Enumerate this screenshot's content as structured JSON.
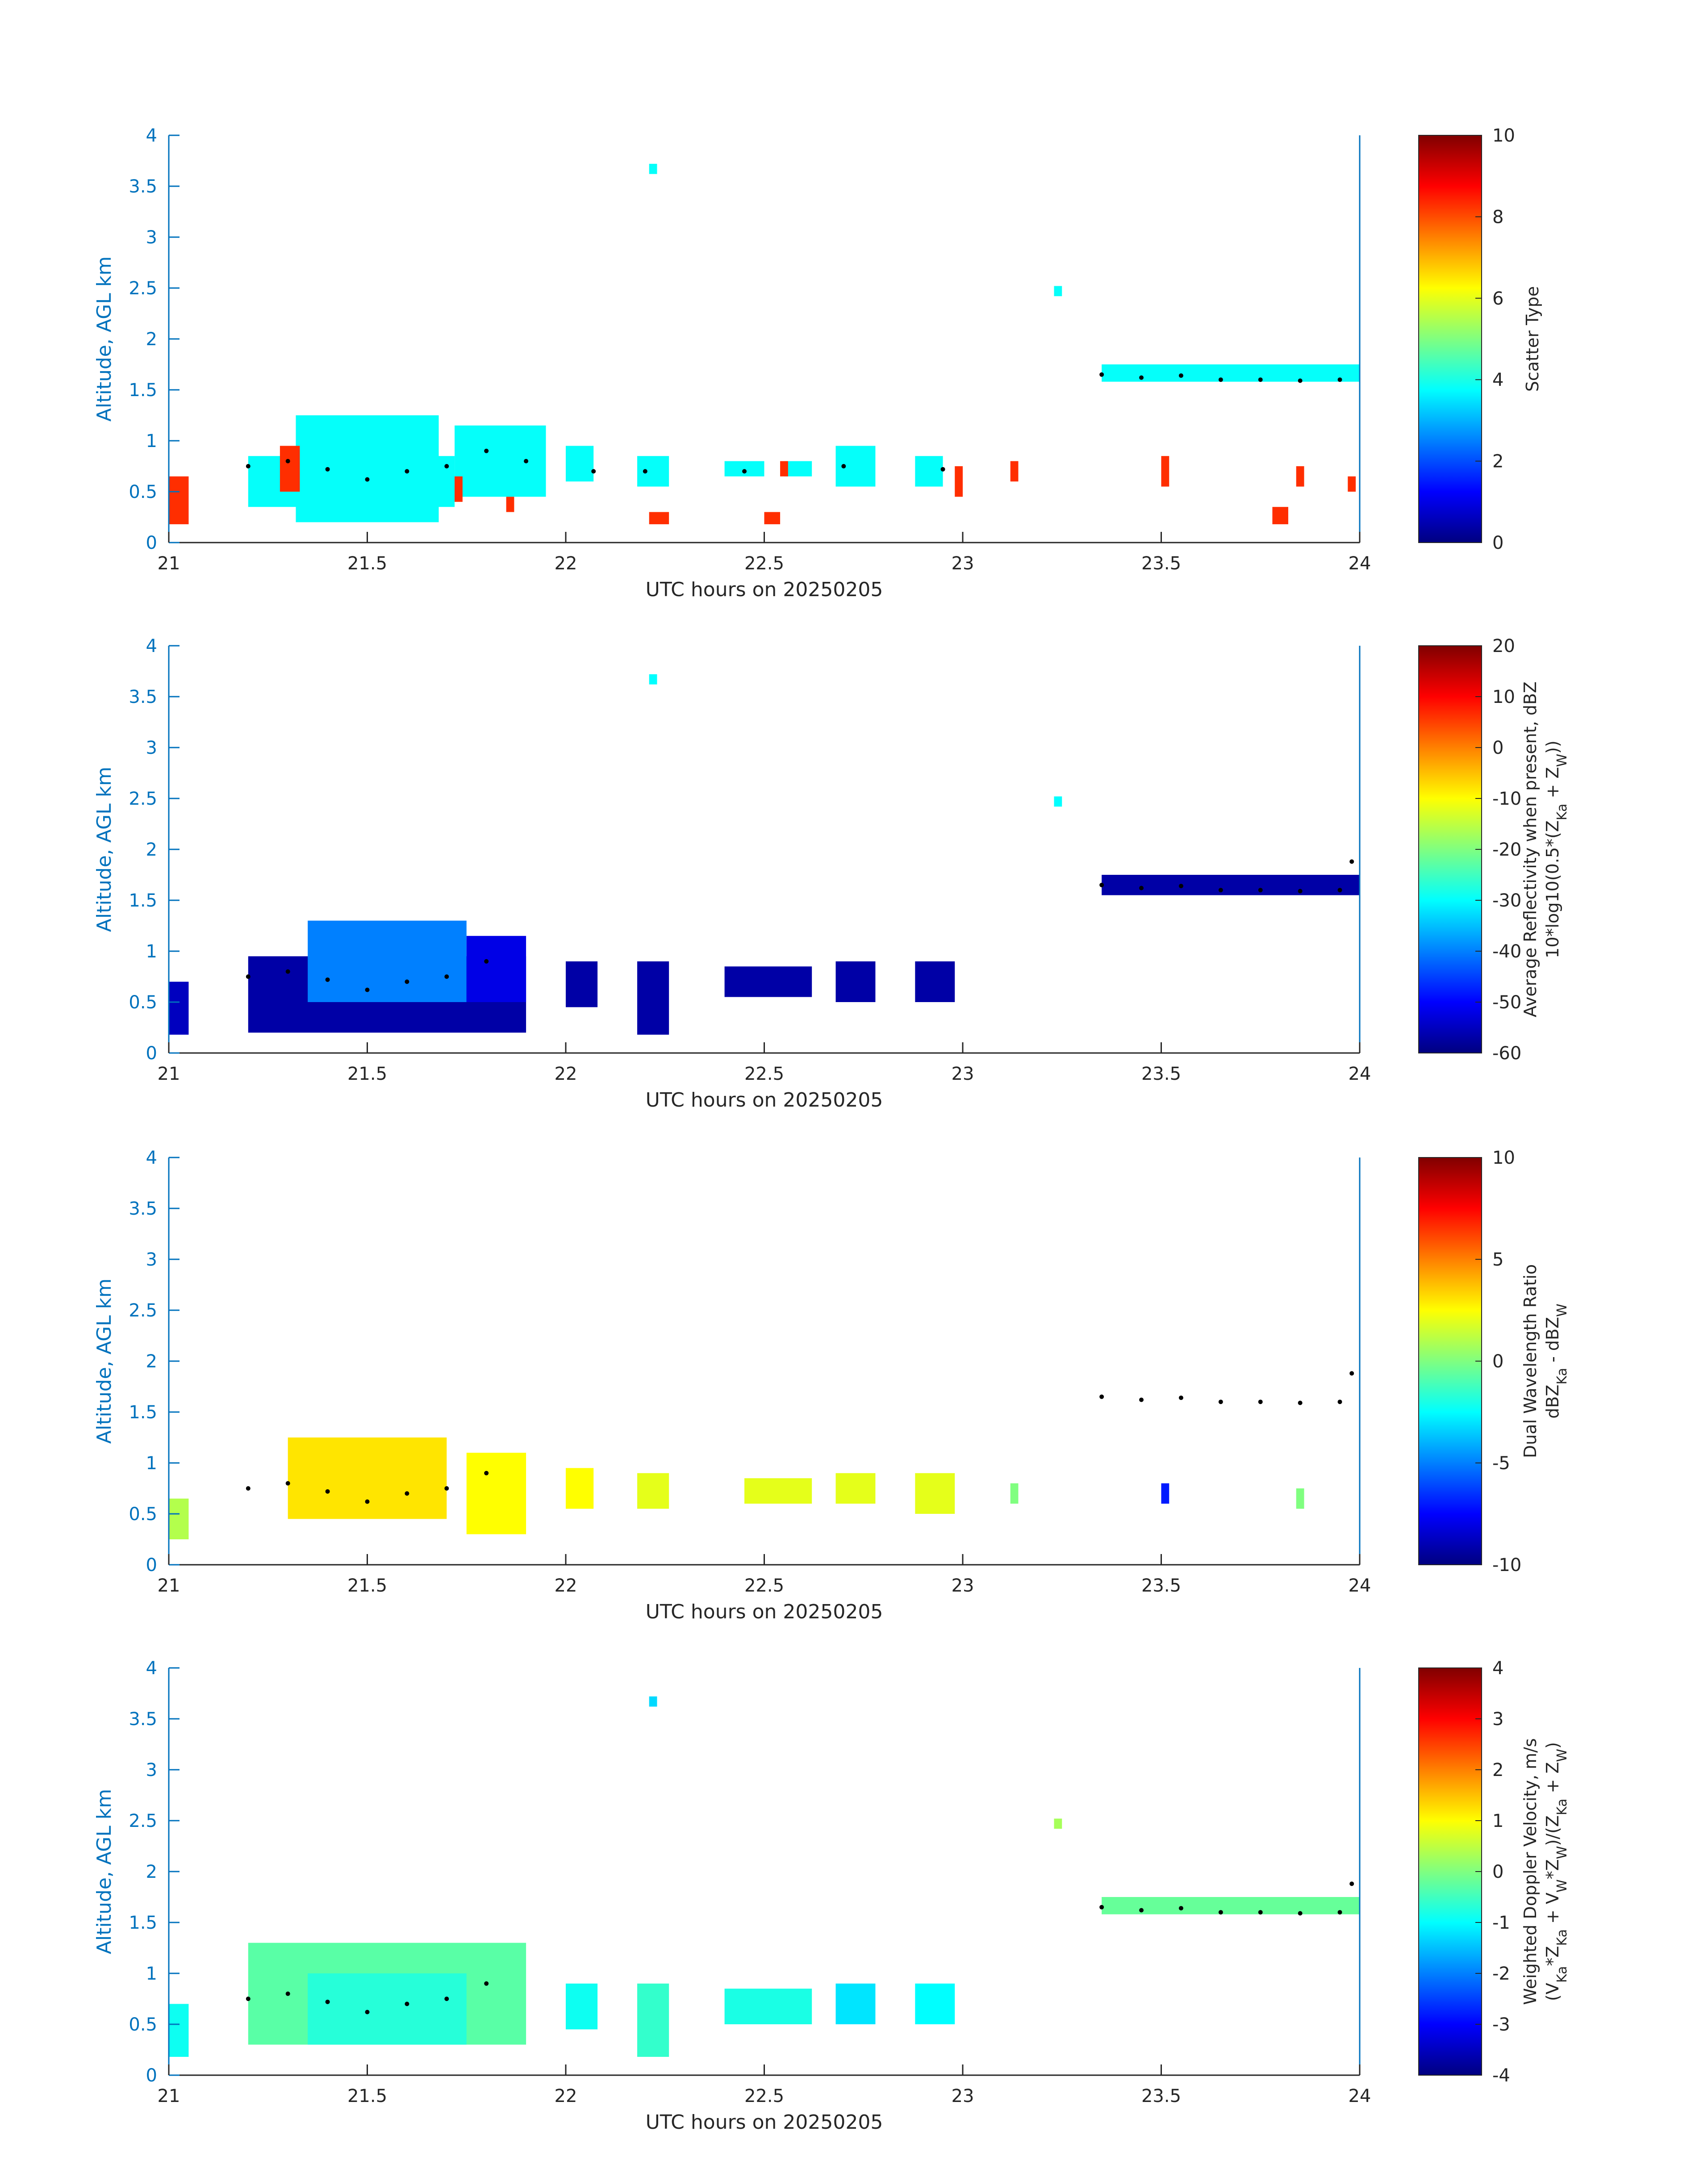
{
  "chart_data": [
    {
      "type": "heatmap",
      "xlabel": "UTC hours on 20250205",
      "ylabel": "Altitude, AGL km",
      "xlim": [
        21,
        24
      ],
      "ylim": [
        0,
        4
      ],
      "xticks": [
        "21",
        "21.5",
        "22",
        "22.5",
        "23",
        "23.5",
        "24"
      ],
      "yticks": [
        "0",
        "0.5",
        "1",
        "1.5",
        "2",
        "2.5",
        "3",
        "3.5",
        "4"
      ],
      "colorbar": {
        "label_lines": [
          "Scatter Type"
        ],
        "lim": [
          0,
          10
        ],
        "ticks": [
          "0",
          "2",
          "4",
          "6",
          "8",
          "10"
        ]
      },
      "colormap": "jet",
      "regions": [
        {
          "x": [
            21.0,
            21.05
          ],
          "y": [
            0.18,
            0.65
          ],
          "value": 8.3
        },
        {
          "x": [
            21.2,
            21.72
          ],
          "y": [
            0.35,
            0.85
          ],
          "value": 3.8
        },
        {
          "x": [
            21.32,
            21.68
          ],
          "y": [
            0.2,
            1.25
          ],
          "value": 3.8
        },
        {
          "x": [
            21.72,
            21.95
          ],
          "y": [
            0.45,
            1.15
          ],
          "value": 3.8
        },
        {
          "x": [
            22.0,
            22.07
          ],
          "y": [
            0.6,
            0.95
          ],
          "value": 3.8
        },
        {
          "x": [
            22.18,
            22.26
          ],
          "y": [
            0.55,
            0.85
          ],
          "value": 3.8
        },
        {
          "x": [
            22.4,
            22.5
          ],
          "y": [
            0.65,
            0.8
          ],
          "value": 3.8
        },
        {
          "x": [
            22.55,
            22.62
          ],
          "y": [
            0.65,
            0.8
          ],
          "value": 3.8
        },
        {
          "x": [
            22.68,
            22.78
          ],
          "y": [
            0.55,
            0.95
          ],
          "value": 3.8
        },
        {
          "x": [
            22.88,
            22.95
          ],
          "y": [
            0.55,
            0.85
          ],
          "value": 3.8
        },
        {
          "x": [
            23.35,
            24.0
          ],
          "y": [
            1.58,
            1.75
          ],
          "value": 3.8
        },
        {
          "x": [
            22.21,
            22.23
          ],
          "y": [
            3.62,
            3.72
          ],
          "value": 3.8
        },
        {
          "x": [
            23.23,
            23.25
          ],
          "y": [
            2.42,
            2.52
          ],
          "value": 3.8
        },
        {
          "x": [
            21.28,
            21.33
          ],
          "y": [
            0.5,
            0.95
          ],
          "value": 8.3
        },
        {
          "x": [
            21.72,
            21.74
          ],
          "y": [
            0.4,
            0.65
          ],
          "value": 8.3
        },
        {
          "x": [
            21.85,
            21.87
          ],
          "y": [
            0.3,
            0.45
          ],
          "value": 8.3
        },
        {
          "x": [
            22.21,
            22.26
          ],
          "y": [
            0.18,
            0.3
          ],
          "value": 8.3
        },
        {
          "x": [
            22.5,
            22.54
          ],
          "y": [
            0.18,
            0.3
          ],
          "value": 8.3
        },
        {
          "x": [
            22.54,
            22.56
          ],
          "y": [
            0.65,
            0.8
          ],
          "value": 8.3
        },
        {
          "x": [
            22.98,
            23.0
          ],
          "y": [
            0.45,
            0.75
          ],
          "value": 8.3
        },
        {
          "x": [
            23.12,
            23.14
          ],
          "y": [
            0.6,
            0.8
          ],
          "value": 8.3
        },
        {
          "x": [
            23.5,
            23.52
          ],
          "y": [
            0.55,
            0.85
          ],
          "value": 8.3
        },
        {
          "x": [
            23.78,
            23.82
          ],
          "y": [
            0.18,
            0.35
          ],
          "value": 8.3
        },
        {
          "x": [
            23.84,
            23.86
          ],
          "y": [
            0.55,
            0.75
          ],
          "value": 8.3
        },
        {
          "x": [
            23.97,
            23.99
          ],
          "y": [
            0.5,
            0.65
          ],
          "value": 8.3
        }
      ],
      "dots": [
        [
          21.2,
          0.75
        ],
        [
          21.3,
          0.8
        ],
        [
          21.4,
          0.72
        ],
        [
          21.5,
          0.62
        ],
        [
          21.6,
          0.7
        ],
        [
          21.7,
          0.75
        ],
        [
          21.8,
          0.9
        ],
        [
          21.9,
          0.8
        ],
        [
          22.07,
          0.7
        ],
        [
          22.2,
          0.7
        ],
        [
          22.45,
          0.7
        ],
        [
          22.7,
          0.75
        ],
        [
          22.95,
          0.72
        ],
        [
          23.35,
          1.65
        ],
        [
          23.45,
          1.62
        ],
        [
          23.55,
          1.64
        ],
        [
          23.65,
          1.6
        ],
        [
          23.75,
          1.6
        ],
        [
          23.85,
          1.59
        ],
        [
          23.95,
          1.6
        ]
      ]
    },
    {
      "type": "heatmap",
      "xlabel": "UTC hours on 20250205",
      "ylabel": "Altitude, AGL km",
      "xlim": [
        21,
        24
      ],
      "ylim": [
        0,
        4
      ],
      "xticks": [
        "21",
        "21.5",
        "22",
        "22.5",
        "23",
        "23.5",
        "24"
      ],
      "yticks": [
        "0",
        "0.5",
        "1",
        "1.5",
        "2",
        "2.5",
        "3",
        "3.5",
        "4"
      ],
      "colorbar": {
        "label_lines": [
          "Average Reflectivity when present, dBZ",
          "10*log10(0.5*(Z_Ka + Z_W))"
        ],
        "lim": [
          -60,
          20
        ],
        "ticks": [
          "-60",
          "-50",
          "-40",
          "-30",
          "-20",
          "-10",
          "0",
          "10",
          "20"
        ]
      },
      "colormap": "jet",
      "regions": [
        {
          "x": [
            21.0,
            21.05
          ],
          "y": [
            0.18,
            0.7
          ],
          "value": -55
        },
        {
          "x": [
            21.2,
            21.9
          ],
          "y": [
            0.2,
            0.95
          ],
          "value": -57
        },
        {
          "x": [
            21.35,
            21.75
          ],
          "y": [
            0.5,
            1.3
          ],
          "value": -40
        },
        {
          "x": [
            21.75,
            21.9
          ],
          "y": [
            0.5,
            1.15
          ],
          "value": -52
        },
        {
          "x": [
            22.0,
            22.08
          ],
          "y": [
            0.45,
            0.9
          ],
          "value": -57
        },
        {
          "x": [
            22.18,
            22.26
          ],
          "y": [
            0.18,
            0.9
          ],
          "value": -57
        },
        {
          "x": [
            22.4,
            22.62
          ],
          "y": [
            0.55,
            0.85
          ],
          "value": -57
        },
        {
          "x": [
            22.68,
            22.78
          ],
          "y": [
            0.5,
            0.9
          ],
          "value": -57
        },
        {
          "x": [
            22.88,
            22.98
          ],
          "y": [
            0.5,
            0.9
          ],
          "value": -57
        },
        {
          "x": [
            23.35,
            24.0
          ],
          "y": [
            1.55,
            1.75
          ],
          "value": -57
        },
        {
          "x": [
            22.21,
            22.23
          ],
          "y": [
            3.62,
            3.72
          ],
          "value": -30
        },
        {
          "x": [
            23.23,
            23.25
          ],
          "y": [
            2.42,
            2.52
          ],
          "value": -30
        }
      ],
      "dots": [
        [
          21.2,
          0.75
        ],
        [
          21.3,
          0.8
        ],
        [
          21.4,
          0.72
        ],
        [
          21.5,
          0.62
        ],
        [
          21.6,
          0.7
        ],
        [
          21.7,
          0.75
        ],
        [
          21.8,
          0.9
        ],
        [
          23.35,
          1.65
        ],
        [
          23.45,
          1.62
        ],
        [
          23.55,
          1.64
        ],
        [
          23.65,
          1.6
        ],
        [
          23.75,
          1.6
        ],
        [
          23.85,
          1.59
        ],
        [
          23.95,
          1.6
        ],
        [
          23.98,
          1.88
        ]
      ]
    },
    {
      "type": "heatmap",
      "xlabel": "UTC hours on 20250205",
      "ylabel": "Altitude, AGL km",
      "xlim": [
        21,
        24
      ],
      "ylim": [
        0,
        4
      ],
      "xticks": [
        "21",
        "21.5",
        "22",
        "22.5",
        "23",
        "23.5",
        "24"
      ],
      "yticks": [
        "0",
        "0.5",
        "1",
        "1.5",
        "2",
        "2.5",
        "3",
        "3.5",
        "4"
      ],
      "colorbar": {
        "label_lines": [
          "Dual Wavelength Ratio",
          "dBZ_Ka - dBZ_W"
        ],
        "lim": [
          -10,
          10
        ],
        "ticks": [
          "-10",
          "-5",
          "0",
          "5",
          "10"
        ]
      },
      "colormap": "jet",
      "regions": [
        {
          "x": [
            21.0,
            21.05
          ],
          "y": [
            0.25,
            0.65
          ],
          "value": 1
        },
        {
          "x": [
            21.3,
            21.7
          ],
          "y": [
            0.45,
            1.25
          ],
          "value": 3
        },
        {
          "x": [
            21.75,
            21.9
          ],
          "y": [
            0.3,
            1.1
          ],
          "value": 2.5
        },
        {
          "x": [
            22.0,
            22.07
          ],
          "y": [
            0.55,
            0.95
          ],
          "value": 2.5
        },
        {
          "x": [
            22.18,
            22.26
          ],
          "y": [
            0.55,
            0.9
          ],
          "value": 2
        },
        {
          "x": [
            22.45,
            22.62
          ],
          "y": [
            0.6,
            0.85
          ],
          "value": 2
        },
        {
          "x": [
            22.68,
            22.78
          ],
          "y": [
            0.6,
            0.9
          ],
          "value": 2
        },
        {
          "x": [
            22.88,
            22.98
          ],
          "y": [
            0.5,
            0.9
          ],
          "value": 2
        },
        {
          "x": [
            23.12,
            23.14
          ],
          "y": [
            0.6,
            0.8
          ],
          "value": 0
        },
        {
          "x": [
            23.5,
            23.52
          ],
          "y": [
            0.6,
            0.8
          ],
          "value": -7
        },
        {
          "x": [
            23.84,
            23.86
          ],
          "y": [
            0.55,
            0.75
          ],
          "value": 0
        }
      ],
      "dots": [
        [
          21.2,
          0.75
        ],
        [
          21.3,
          0.8
        ],
        [
          21.4,
          0.72
        ],
        [
          21.5,
          0.62
        ],
        [
          21.6,
          0.7
        ],
        [
          21.7,
          0.75
        ],
        [
          21.8,
          0.9
        ],
        [
          23.35,
          1.65
        ],
        [
          23.45,
          1.62
        ],
        [
          23.55,
          1.64
        ],
        [
          23.65,
          1.6
        ],
        [
          23.75,
          1.6
        ],
        [
          23.85,
          1.59
        ],
        [
          23.95,
          1.6
        ],
        [
          23.98,
          1.88
        ]
      ]
    },
    {
      "type": "heatmap",
      "xlabel": "UTC hours on 20250205",
      "ylabel": "Altitude, AGL km",
      "xlim": [
        21,
        24
      ],
      "ylim": [
        0,
        4
      ],
      "xticks": [
        "21",
        "21.5",
        "22",
        "22.5",
        "23",
        "23.5",
        "24"
      ],
      "yticks": [
        "0",
        "0.5",
        "1",
        "1.5",
        "2",
        "2.5",
        "3",
        "3.5",
        "4"
      ],
      "colorbar": {
        "label_lines": [
          "Weighted Doppler Velocity, m/s",
          "(V_Ka*Z_Ka + V_W*Z_W)/(Z_Ka + Z_W)"
        ],
        "lim": [
          -4,
          4
        ],
        "ticks": [
          "-4",
          "-3",
          "-2",
          "-1",
          "0",
          "1",
          "2",
          "3",
          "4"
        ]
      },
      "colormap": "jet",
      "regions": [
        {
          "x": [
            21.0,
            21.05
          ],
          "y": [
            0.18,
            0.7
          ],
          "value": -0.9
        },
        {
          "x": [
            21.2,
            21.9
          ],
          "y": [
            0.3,
            1.3
          ],
          "value": -0.3
        },
        {
          "x": [
            21.35,
            21.75
          ],
          "y": [
            0.3,
            1.0
          ],
          "value": -0.7
        },
        {
          "x": [
            22.0,
            22.08
          ],
          "y": [
            0.45,
            0.9
          ],
          "value": -0.9
        },
        {
          "x": [
            22.18,
            22.26
          ],
          "y": [
            0.18,
            0.9
          ],
          "value": -0.6
        },
        {
          "x": [
            22.4,
            22.62
          ],
          "y": [
            0.5,
            0.85
          ],
          "value": -0.8
        },
        {
          "x": [
            22.68,
            22.78
          ],
          "y": [
            0.5,
            0.9
          ],
          "value": -1.2
        },
        {
          "x": [
            22.88,
            22.98
          ],
          "y": [
            0.5,
            0.9
          ],
          "value": -1.0
        },
        {
          "x": [
            23.35,
            24.0
          ],
          "y": [
            1.58,
            1.75
          ],
          "value": -0.2
        },
        {
          "x": [
            22.21,
            22.23
          ],
          "y": [
            3.62,
            3.72
          ],
          "value": -1.3
        },
        {
          "x": [
            23.23,
            23.25
          ],
          "y": [
            2.42,
            2.52
          ],
          "value": 0.3
        }
      ],
      "dots": [
        [
          21.2,
          0.75
        ],
        [
          21.3,
          0.8
        ],
        [
          21.4,
          0.72
        ],
        [
          21.5,
          0.62
        ],
        [
          21.6,
          0.7
        ],
        [
          21.7,
          0.75
        ],
        [
          21.8,
          0.9
        ],
        [
          23.35,
          1.65
        ],
        [
          23.45,
          1.62
        ],
        [
          23.55,
          1.64
        ],
        [
          23.65,
          1.6
        ],
        [
          23.75,
          1.6
        ],
        [
          23.85,
          1.59
        ],
        [
          23.95,
          1.6
        ],
        [
          23.98,
          1.88
        ]
      ]
    }
  ]
}
